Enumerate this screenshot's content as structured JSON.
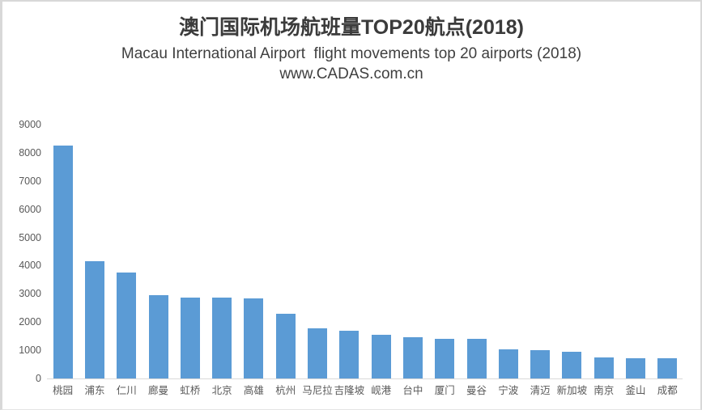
{
  "frame": {
    "background": "#ffffff",
    "border_color": "#d8d8d8"
  },
  "header": {
    "title": "澳门国际机场航班量TOP20航点(2018)",
    "subtitle": "Macau International Airport  flight movements top 20 airports (2018)",
    "source_url": "www.CADAS.com.cn"
  },
  "chart_data": {
    "type": "bar",
    "title": "澳门国际机场航班量TOP20航点(2018)",
    "subtitle": "Macau International Airport  flight movements top 20 airports (2018)",
    "source": "www.CADAS.com.cn",
    "categories": [
      "桃园",
      "浦东",
      "仁川",
      "廊曼",
      "虹桥",
      "北京",
      "高雄",
      "杭州",
      "马尼拉",
      "吉隆坡",
      "岘港",
      "台中",
      "厦门",
      "曼谷",
      "宁波",
      "清迈",
      "新加坡",
      "南京",
      "釜山",
      "成都"
    ],
    "values": [
      8250,
      4150,
      3750,
      2950,
      2880,
      2860,
      2840,
      2300,
      1780,
      1690,
      1560,
      1450,
      1410,
      1400,
      1030,
      990,
      950,
      740,
      730,
      710
    ],
    "xlabel": "",
    "ylabel": "",
    "ylim": [
      0,
      9000
    ],
    "ytick_step": 1000,
    "ytick_labels": [
      "0",
      "1000",
      "2000",
      "3000",
      "4000",
      "5000",
      "6000",
      "7000",
      "8000",
      "9000"
    ],
    "grid": false,
    "legend": false,
    "bar_color": "#5B9BD5",
    "axis_line_color": "#D9D9D9",
    "tick_label_color": "#595959",
    "title_color": "#3B3B3B"
  }
}
